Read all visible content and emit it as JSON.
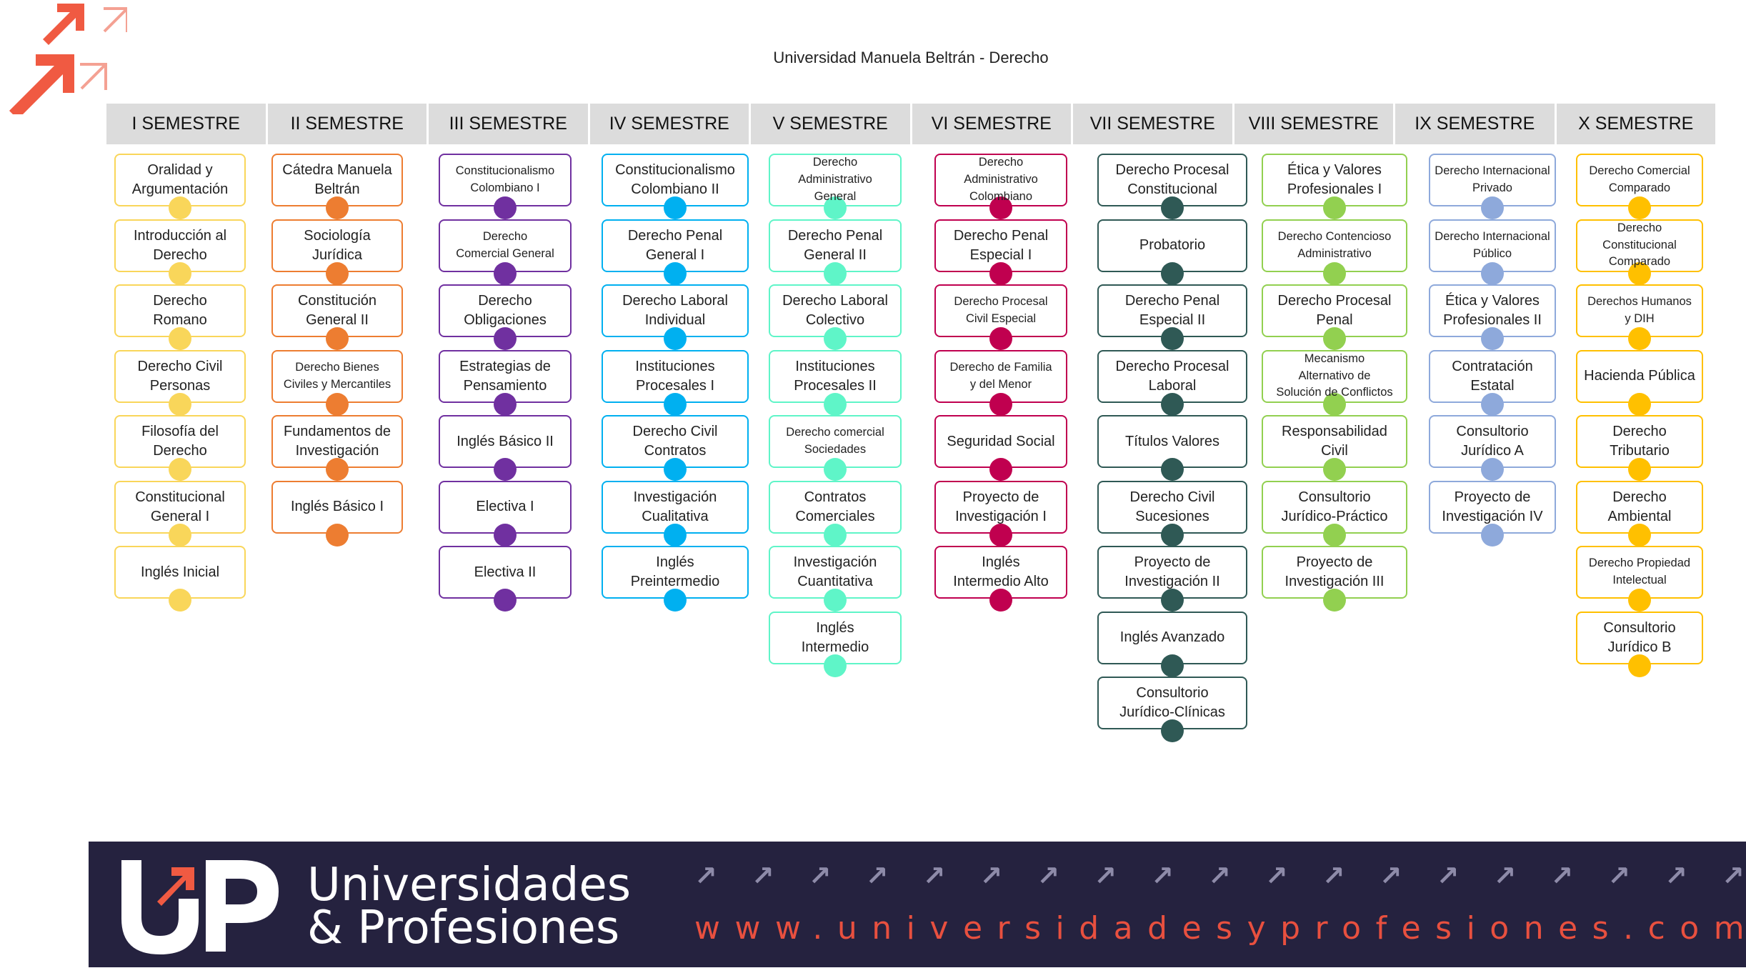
{
  "title": "Universidad Manuela Beltrán - Derecho",
  "semesters": [
    {
      "label": "I SEMESTRE",
      "color": "#f9d65a",
      "courses": [
        {
          "name": "Oralidad y\nArgumentación"
        },
        {
          "name": "Introducción al\nDerecho"
        },
        {
          "name": "Derecho\nRomano"
        },
        {
          "name": "Derecho Civil\nPersonas"
        },
        {
          "name": "Filosofía del\nDerecho"
        },
        {
          "name": "Constitucional\nGeneral  I"
        },
        {
          "name": "Inglés Inicial"
        }
      ]
    },
    {
      "label": "II SEMESTRE",
      "color": "#ed7d31",
      "courses": [
        {
          "name": "Cátedra Manuela\nBeltrán"
        },
        {
          "name": "Sociología\nJurídica"
        },
        {
          "name": "Constitución\nGeneral  II"
        },
        {
          "name": "Derecho Bienes\nCiviles y Mercantiles",
          "small": true
        },
        {
          "name": "Fundamentos de\nInvestigación"
        },
        {
          "name": "Inglés Básico I"
        }
      ]
    },
    {
      "label": "III SEMESTRE",
      "color": "#7030a0",
      "courses": [
        {
          "name": "Constitucionalismo\nColombiano I",
          "small": true
        },
        {
          "name": "Derecho\nComercial General",
          "small": true
        },
        {
          "name": "Derecho\nObligaciones"
        },
        {
          "name": "Estrategias de\nPensamiento"
        },
        {
          "name": "Inglés Básico II"
        },
        {
          "name": "Electiva I"
        },
        {
          "name": "Electiva II"
        }
      ]
    },
    {
      "label": "IV SEMESTRE",
      "color": "#00b0f0",
      "courses": [
        {
          "name": "Constitucionalismo\nColombiano II"
        },
        {
          "name": "Derecho Penal\nGeneral  I"
        },
        {
          "name": "Derecho Laboral\nIndividual"
        },
        {
          "name": "Instituciones\nProcesales I"
        },
        {
          "name": "Derecho Civil\nContratos"
        },
        {
          "name": "Investigación\nCualitativa"
        },
        {
          "name": "Inglés\nPreintermedio"
        }
      ]
    },
    {
      "label": "V SEMESTRE",
      "color": "#5ff5c8",
      "courses": [
        {
          "name": "Derecho\nAdministrativo\nGeneral",
          "small": true
        },
        {
          "name": "Derecho Penal\nGeneral  II"
        },
        {
          "name": "Derecho Laboral\nColectivo"
        },
        {
          "name": "Instituciones\nProcesales II"
        },
        {
          "name": "Derecho comercial\nSociedades",
          "small": true
        },
        {
          "name": "Contratos\nComerciales"
        },
        {
          "name": "Investigación\nCuantitativa"
        },
        {
          "name": "Inglés\nIntermedio"
        }
      ]
    },
    {
      "label": "VI SEMESTRE",
      "color": "#c0004f",
      "courses": [
        {
          "name": "Derecho\nAdministrativo\nColombiano",
          "small": true
        },
        {
          "name": "Derecho Penal\nEspecial I"
        },
        {
          "name": "Derecho Procesal\nCivil Especial",
          "small": true
        },
        {
          "name": "Derecho de Familia\ny del Menor",
          "small": true
        },
        {
          "name": "Seguridad Social"
        },
        {
          "name": "Proyecto de\nInvestigación I"
        },
        {
          "name": "Inglés\nIntermedio Alto"
        }
      ]
    },
    {
      "label": "VII SEMESTRE",
      "color": "#2f5955",
      "courses": [
        {
          "name": "Derecho Procesal\nConstitucional"
        },
        {
          "name": "Probatorio"
        },
        {
          "name": "Derecho Penal\nEspecial II"
        },
        {
          "name": "Derecho Procesal\nLaboral"
        },
        {
          "name": "Títulos Valores"
        },
        {
          "name": "Derecho Civil\nSucesiones"
        },
        {
          "name": "Proyecto de\nInvestigación II"
        },
        {
          "name": "Inglés Avanzado"
        },
        {
          "name": "Consultorio\nJurídico-Clínicas"
        }
      ]
    },
    {
      "label": "VIII SEMESTRE",
      "color": "#92d050",
      "courses": [
        {
          "name": "Ética y Valores\nProfesionales I"
        },
        {
          "name": "Derecho Contencioso\nAdministrativo",
          "small": true
        },
        {
          "name": "Derecho Procesal\nPenal"
        },
        {
          "name": "Mecanismo\nAlternativo de\nSolución de Conflictos",
          "small": true
        },
        {
          "name": "Responsabilidad\nCivil"
        },
        {
          "name": "Consultorio\nJurídico-Práctico"
        },
        {
          "name": "Proyecto de\nInvestigación III"
        }
      ]
    },
    {
      "label": "IX SEMESTRE",
      "color": "#8ea9db",
      "courses": [
        {
          "name": "Derecho Internacional\nPrivado",
          "small": true
        },
        {
          "name": "Derecho Internacional\nPúblico",
          "small": true
        },
        {
          "name": "Ética y Valores\nProfesionales II"
        },
        {
          "name": "Contratación\nEstatal"
        },
        {
          "name": "Consultorio\nJurídico A"
        },
        {
          "name": "Proyecto de\nInvestigación IV"
        }
      ]
    },
    {
      "label": "X SEMESTRE",
      "color": "#ffc000",
      "courses": [
        {
          "name": "Derecho Comercial\nComparado",
          "small": true
        },
        {
          "name": "Derecho Constitucional\nComparado",
          "small": true
        },
        {
          "name": "Derechos Humanos\ny DIH",
          "small": true
        },
        {
          "name": "Hacienda Pública"
        },
        {
          "name": "Derecho\nTributario"
        },
        {
          "name": "Derecho\nAmbiental"
        },
        {
          "name": "Derecho Propiedad\nIntelectual",
          "small": true
        },
        {
          "name": "Consultorio\nJurídico B"
        }
      ]
    }
  ],
  "footer": {
    "brand_line1": "Universidades",
    "brand_line2": "& Profesiones",
    "url": "www.universidadesyprofesiones.com"
  },
  "colors": {
    "accent": "#f05a42",
    "footer_bg": "#25223f"
  }
}
